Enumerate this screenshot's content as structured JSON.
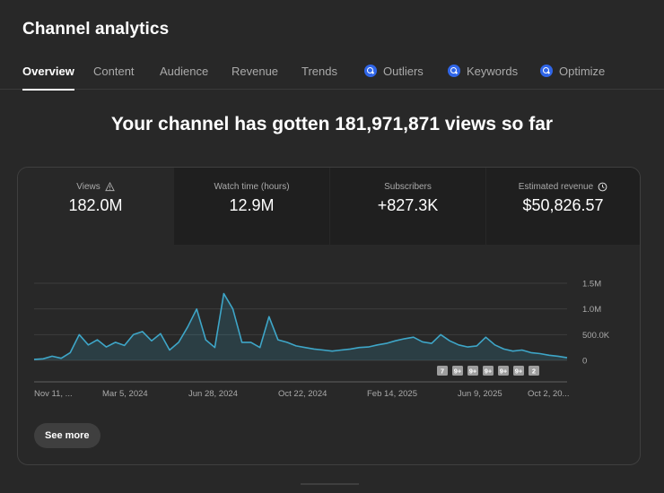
{
  "page": {
    "title": "Channel analytics"
  },
  "tabs": [
    {
      "label": "Overview",
      "active": true,
      "icon": null
    },
    {
      "label": "Content",
      "active": false,
      "icon": null
    },
    {
      "label": "Audience",
      "active": false,
      "icon": null
    },
    {
      "label": "Revenue",
      "active": false,
      "icon": null
    },
    {
      "label": "Trends",
      "active": false,
      "icon": null
    },
    {
      "label": "Outliers",
      "active": false,
      "icon": "search-badge-icon"
    },
    {
      "label": "Keywords",
      "active": false,
      "icon": "search-badge-icon"
    },
    {
      "label": "Optimize",
      "active": false,
      "icon": "search-badge-icon"
    }
  ],
  "headline": "Your channel has gotten 181,971,871 views so far",
  "metrics": [
    {
      "label": "Views",
      "value": "182.0M",
      "icon": "warning-icon",
      "selected": true
    },
    {
      "label": "Watch time (hours)",
      "value": "12.9M",
      "icon": null,
      "selected": false
    },
    {
      "label": "Subscribers",
      "value": "+827.3K",
      "icon": null,
      "selected": false
    },
    {
      "label": "Estimated revenue",
      "value": "$50,826.57",
      "icon": "clock-icon",
      "selected": false
    }
  ],
  "chart_data": {
    "type": "area",
    "series": [
      {
        "name": "Views",
        "x": [
          "Nov 11, 2023",
          "Nov 25, 2023",
          "Dec 9, 2023",
          "Dec 23, 2023",
          "Jan 6, 2024",
          "Jan 20, 2024",
          "Jan 27, 2024",
          "Feb 3, 2024",
          "Feb 17, 2024",
          "Mar 2, 2024",
          "Mar 16, 2024",
          "Mar 30, 2024",
          "Apr 6, 2024",
          "Apr 13, 2024",
          "Apr 27, 2024",
          "May 4, 2024",
          "May 11, 2024",
          "May 25, 2024",
          "Jun 1, 2024",
          "Jun 8, 2024",
          "Jun 15, 2024",
          "Jun 22, 2024",
          "Jun 29, 2024",
          "Jul 6, 2024",
          "Jul 13, 2024",
          "Jul 20, 2024",
          "Aug 3, 2024",
          "Aug 10, 2024",
          "Aug 17, 2024",
          "Aug 31, 2024",
          "Sep 14, 2024",
          "Sep 28, 2024",
          "Oct 12, 2024",
          "Oct 26, 2024",
          "Nov 9, 2024",
          "Nov 23, 2024",
          "Dec 7, 2024",
          "Dec 21, 2024",
          "Jan 4, 2025",
          "Jan 18, 2025",
          "Feb 1, 2025",
          "Feb 15, 2025",
          "Mar 1, 2025",
          "Mar 15, 2025",
          "Mar 29, 2025",
          "Apr 5, 2025",
          "Apr 19, 2025",
          "May 3, 2025",
          "May 17, 2025",
          "May 31, 2025",
          "Jun 14, 2025",
          "Jun 28, 2025",
          "Jul 12, 2025",
          "Jul 26, 2025",
          "Aug 9, 2025",
          "Aug 23, 2025",
          "Sep 6, 2025",
          "Sep 20, 2025",
          "Oct 4, 2025",
          "Oct 11, 2025"
        ],
        "values": [
          20000,
          30000,
          80000,
          40000,
          150000,
          500000,
          300000,
          400000,
          260000,
          350000,
          290000,
          500000,
          560000,
          380000,
          520000,
          200000,
          350000,
          650000,
          1000000,
          400000,
          250000,
          1300000,
          1000000,
          350000,
          350000,
          250000,
          850000,
          400000,
          350000,
          280000,
          250000,
          220000,
          200000,
          180000,
          200000,
          220000,
          250000,
          260000,
          300000,
          330000,
          380000,
          420000,
          450000,
          360000,
          330000,
          500000,
          380000,
          300000,
          260000,
          280000,
          450000,
          300000,
          220000,
          180000,
          200000,
          150000,
          130000,
          100000,
          80000,
          50000
        ]
      }
    ],
    "y_ticks": [
      "1.5M",
      "1.0M",
      "500.0K",
      "0"
    ],
    "ylim": [
      0,
      1500000
    ],
    "x_ticks": [
      "Nov 11, ...",
      "Mar 5, 2024",
      "Jun 28, 2024",
      "Oct 22, 2024",
      "Feb 14, 2025",
      "Jun 9, 2025",
      "Oct 2, 20..."
    ],
    "markers": [
      "7",
      "9+",
      "9+",
      "9+",
      "9+",
      "9+",
      "2"
    ],
    "colors": {
      "line": "#3ea6c8",
      "fill": "#3ea6c8",
      "grid": "#3d3d3d",
      "marker": "#9e9e9e"
    }
  },
  "see_more": {
    "label": "See more"
  }
}
